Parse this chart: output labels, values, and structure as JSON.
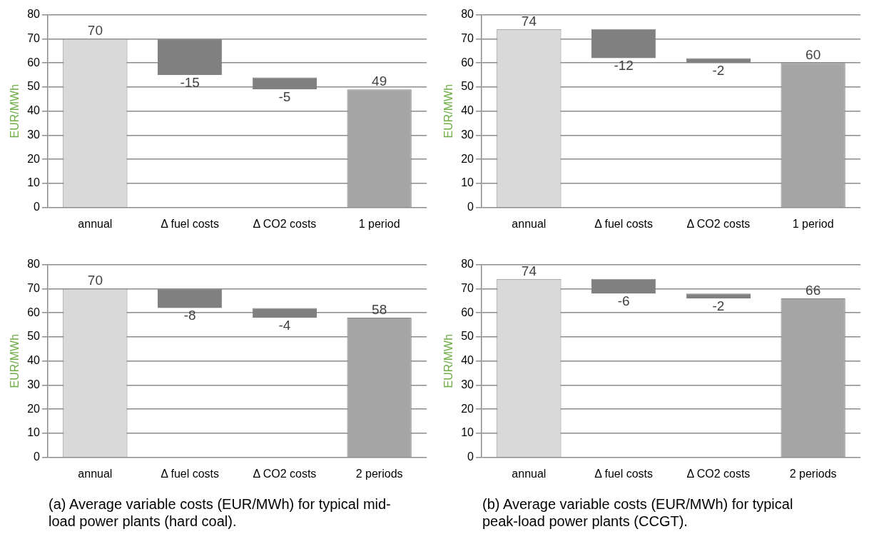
{
  "chart_data": [
    {
      "type": "bar",
      "categories": [
        "annual",
        "Δ fuel costs",
        "Δ CO2 costs",
        "1 period"
      ],
      "values": [
        70,
        -15,
        -5,
        49
      ],
      "base": [
        0,
        70,
        54,
        0
      ],
      "colors": [
        "#d9d9d9",
        "#808080",
        "#808080",
        "#a6a6a6"
      ],
      "ylabel": "EUR/MWh",
      "ylim": [
        0,
        80
      ],
      "yticks": [
        0,
        10,
        20,
        30,
        40,
        50,
        60,
        70,
        80
      ],
      "grid": "y",
      "data_labels": true
    },
    {
      "type": "bar",
      "categories": [
        "annual",
        "Δ fuel costs",
        "Δ CO2 costs",
        "1 period"
      ],
      "values": [
        74,
        -12,
        -2,
        60
      ],
      "base": [
        0,
        74,
        62,
        0
      ],
      "colors": [
        "#d9d9d9",
        "#808080",
        "#808080",
        "#a6a6a6"
      ],
      "ylabel": "EUR/MWh",
      "ylim": [
        0,
        80
      ],
      "yticks": [
        0,
        10,
        20,
        30,
        40,
        50,
        60,
        70,
        80
      ],
      "grid": "y",
      "data_labels": true
    },
    {
      "type": "bar",
      "categories": [
        "annual",
        "Δ fuel costs",
        "Δ CO2 costs",
        "2 periods"
      ],
      "values": [
        70,
        -8,
        -4,
        58
      ],
      "base": [
        0,
        70,
        62,
        0
      ],
      "colors": [
        "#d9d9d9",
        "#808080",
        "#808080",
        "#a6a6a6"
      ],
      "ylabel": "EUR/MWh",
      "ylim": [
        0,
        80
      ],
      "yticks": [
        0,
        10,
        20,
        30,
        40,
        50,
        60,
        70,
        80
      ],
      "grid": "y",
      "data_labels": true,
      "annotations": [
        "(a) Average variable costs (EUR/MWh) for typical mid-load power plants (hard coal)."
      ]
    },
    {
      "type": "bar",
      "categories": [
        "annual",
        "Δ fuel costs",
        "Δ CO2 costs",
        "2 periods"
      ],
      "values": [
        74,
        -6,
        -2,
        66
      ],
      "base": [
        0,
        74,
        68,
        0
      ],
      "colors": [
        "#d9d9d9",
        "#808080",
        "#808080",
        "#a6a6a6"
      ],
      "ylabel": "EUR/MWh",
      "ylim": [
        0,
        80
      ],
      "yticks": [
        0,
        10,
        20,
        30,
        40,
        50,
        60,
        70,
        80
      ],
      "grid": "y",
      "data_labels": true,
      "annotations": [
        "(b) Average variable costs (EUR/MWh) for typical peak-load power plants (CCGT)."
      ]
    }
  ]
}
